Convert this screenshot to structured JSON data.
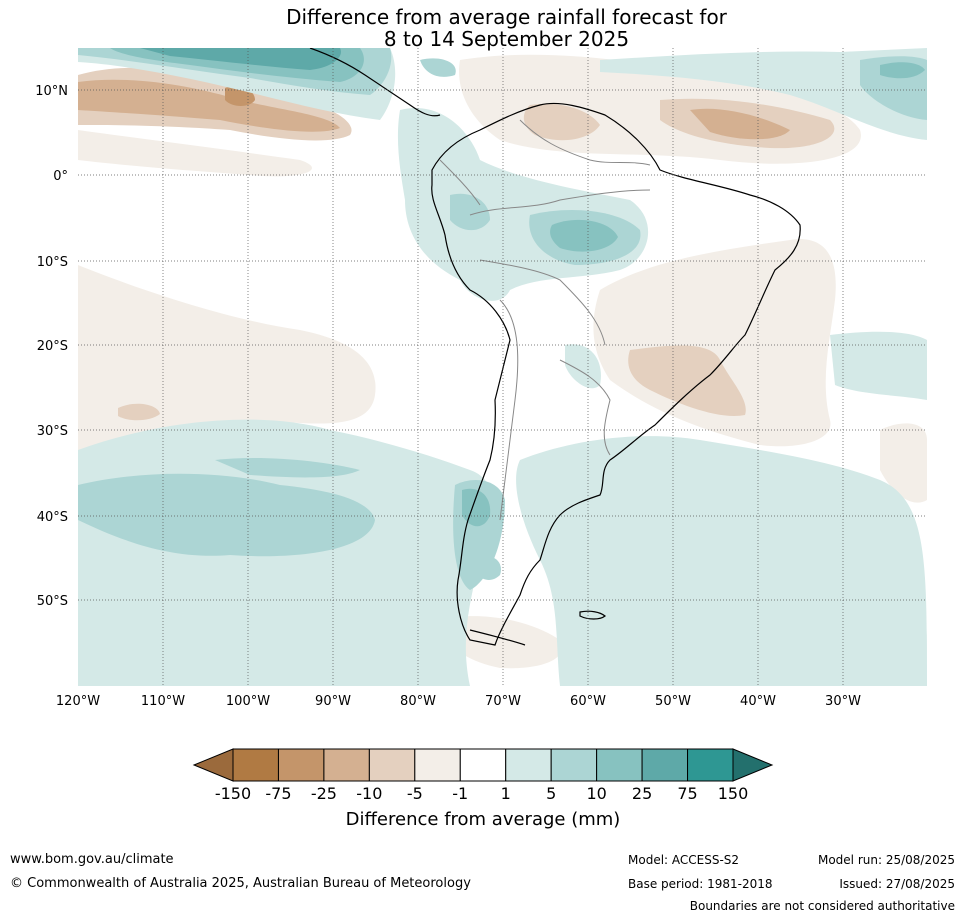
{
  "title": {
    "line1": "Difference from average rainfall forecast for",
    "line2": "8 to 14 September 2025"
  },
  "map": {
    "lat_labels": [
      "10°N",
      "0°",
      "10°S",
      "20°S",
      "30°S",
      "40°S",
      "50°S"
    ],
    "lon_labels": [
      "120°W",
      "110°W",
      "100°W",
      "90°W",
      "80°W",
      "70°W",
      "60°W",
      "50°W",
      "40°W",
      "30°W"
    ],
    "grid": true,
    "region": "South America"
  },
  "colorbar": {
    "label": "Difference from average (mm)",
    "ticks": [
      "-150",
      "-75",
      "-25",
      "-10",
      "-5",
      "-1",
      "1",
      "5",
      "10",
      "25",
      "75",
      "150"
    ],
    "colors": [
      "#9b6a3c",
      "#b07a43",
      "#c4956a",
      "#d4b091",
      "#e4d0bf",
      "#f3eee8",
      "#ffffff",
      "#d4e9e7",
      "#acd5d4",
      "#87c2c0",
      "#5ea9a8",
      "#2e9793",
      "#23706d"
    ]
  },
  "footer": {
    "url": "www.bom.gov.au/climate",
    "copyright": "© Commonwealth of Australia 2025, Australian Bureau of Meteorology",
    "model": "Model: ACCESS-S2",
    "base_period": "Base period: 1981-2018",
    "model_run": "Model run: 25/08/2025",
    "issued": "Issued: 27/08/2025",
    "disclaimer": "Boundaries are not considered authoritative"
  }
}
